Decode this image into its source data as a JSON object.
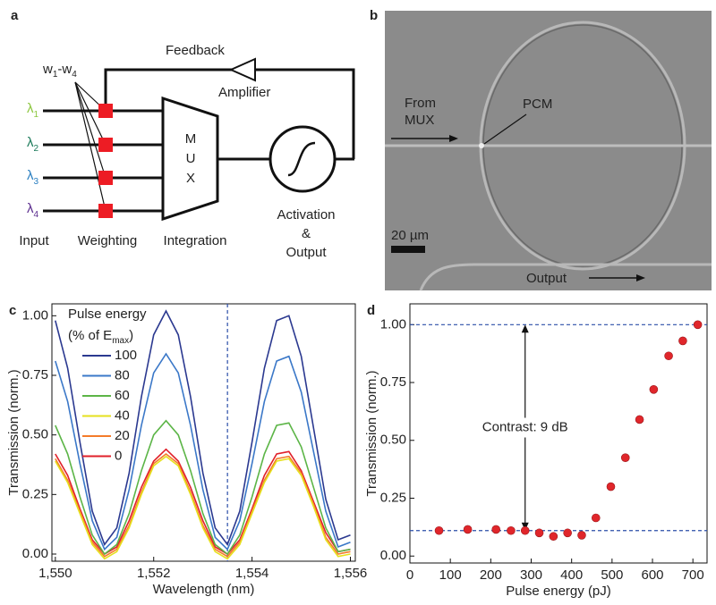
{
  "panel_labels": [
    "a",
    "b",
    "c",
    "d"
  ],
  "diagram": {
    "feedback": "Feedback",
    "amplifier": "Amplifier",
    "weights_label": [
      "w",
      "1",
      "-w",
      "4"
    ],
    "inputs": [
      {
        "symbol": "λ",
        "sub": "1",
        "color": "#8cc63f"
      },
      {
        "symbol": "λ",
        "sub": "2",
        "color": "#1b7a5a"
      },
      {
        "symbol": "λ",
        "sub": "3",
        "color": "#2a7fc1"
      },
      {
        "symbol": "λ",
        "sub": "4",
        "color": "#5b2d8e"
      }
    ],
    "mux": [
      "M",
      "U",
      "X"
    ],
    "activation": [
      "Activation",
      "&",
      "Output"
    ],
    "stage_labels": [
      "Input",
      "Weighting",
      "Integration"
    ]
  },
  "micrograph": {
    "from_label": [
      "From",
      "MUX"
    ],
    "pcm": "PCM",
    "scale_bar": "20 µm",
    "output": "Output"
  },
  "chart_data": [
    {
      "type": "line",
      "x_label": "Wavelength (nm)",
      "y_label": "Transmission (norm.)",
      "legend_title": "Pulse energy",
      "legend_subtitle": [
        "(% of E",
        "max",
        ")"
      ],
      "x": [
        1550,
        1550.25,
        1550.5,
        1550.75,
        1551,
        1551.25,
        1551.5,
        1551.75,
        1552,
        1552.25,
        1552.5,
        1552.75,
        1553,
        1553.25,
        1553.5,
        1553.75,
        1554,
        1554.25,
        1554.5,
        1554.75,
        1555,
        1555.25,
        1555.5,
        1555.75,
        1556
      ],
      "series": [
        {
          "name": "100",
          "color": "#2b3990",
          "values": [
            0.98,
            0.78,
            0.47,
            0.18,
            0.04,
            0.11,
            0.34,
            0.66,
            0.92,
            1.02,
            0.92,
            0.66,
            0.34,
            0.11,
            0.04,
            0.18,
            0.47,
            0.78,
            0.98,
            1.0,
            0.83,
            0.53,
            0.23,
            0.06,
            0.08
          ]
        },
        {
          "name": "80",
          "color": "#3b78c8",
          "values": [
            0.81,
            0.64,
            0.38,
            0.14,
            0.02,
            0.07,
            0.27,
            0.54,
            0.76,
            0.84,
            0.76,
            0.54,
            0.27,
            0.07,
            0.02,
            0.14,
            0.38,
            0.64,
            0.81,
            0.83,
            0.68,
            0.43,
            0.18,
            0.03,
            0.05
          ]
        },
        {
          "name": "60",
          "color": "#5cb547",
          "values": [
            0.54,
            0.42,
            0.24,
            0.08,
            0.0,
            0.04,
            0.17,
            0.35,
            0.5,
            0.56,
            0.5,
            0.35,
            0.17,
            0.04,
            0.0,
            0.08,
            0.24,
            0.42,
            0.54,
            0.55,
            0.45,
            0.28,
            0.11,
            0.01,
            0.02
          ]
        },
        {
          "name": "40",
          "color": "#e6e01e",
          "values": [
            0.39,
            0.3,
            0.17,
            0.04,
            -0.02,
            0.01,
            0.11,
            0.25,
            0.37,
            0.41,
            0.37,
            0.25,
            0.11,
            0.01,
            -0.02,
            0.04,
            0.17,
            0.3,
            0.39,
            0.4,
            0.33,
            0.2,
            0.06,
            -0.01,
            0.0
          ]
        },
        {
          "name": "20",
          "color": "#f47b2a",
          "values": [
            0.4,
            0.31,
            0.18,
            0.05,
            -0.01,
            0.02,
            0.12,
            0.26,
            0.38,
            0.42,
            0.38,
            0.26,
            0.12,
            0.02,
            -0.01,
            0.05,
            0.18,
            0.31,
            0.4,
            0.41,
            0.34,
            0.21,
            0.07,
            0.0,
            0.01
          ]
        },
        {
          "name": "0",
          "color": "#e0202a",
          "values": [
            0.42,
            0.33,
            0.19,
            0.06,
            0.0,
            0.03,
            0.14,
            0.28,
            0.39,
            0.44,
            0.39,
            0.28,
            0.14,
            0.03,
            0.0,
            0.06,
            0.19,
            0.33,
            0.42,
            0.43,
            0.35,
            0.22,
            0.09,
            0.01,
            0.02
          ]
        }
      ],
      "vline": 1553.5,
      "xlim": [
        1549.93,
        1556.1
      ],
      "ylim": [
        -0.03,
        1.05
      ],
      "xticks": [
        {
          "value": 1550,
          "label": "1,550"
        },
        {
          "value": 1552,
          "label": "1,552"
        },
        {
          "value": 1554,
          "label": "1,554"
        },
        {
          "value": 1556,
          "label": "1,556"
        }
      ],
      "yticks": [
        {
          "value": 0,
          "label": "0.00"
        },
        {
          "value": 0.25,
          "label": "0.25"
        },
        {
          "value": 0.5,
          "label": "0.50"
        },
        {
          "value": 0.75,
          "label": "0.75"
        },
        {
          "value": 1,
          "label": "1.00"
        }
      ]
    },
    {
      "type": "scatter",
      "x_label": "Pulse energy (pJ)",
      "y_label": "Transmission (norm.)",
      "annotation": "Contrast: 9 dB",
      "color": "#e0262b",
      "x": [
        72,
        143,
        213,
        250,
        285,
        320,
        355,
        390,
        425,
        460,
        497,
        533,
        568,
        603,
        640,
        675,
        712
      ],
      "values": [
        0.11,
        0.115,
        0.115,
        0.11,
        0.11,
        0.1,
        0.085,
        0.1,
        0.09,
        0.165,
        0.3,
        0.425,
        0.59,
        0.72,
        0.865,
        0.93,
        1.0
      ],
      "hlines": [
        1.0,
        0.11
      ],
      "xlim": [
        0,
        735
      ],
      "ylim": [
        -0.03,
        1.09
      ],
      "xticks": [
        0,
        100,
        200,
        300,
        400,
        500,
        600,
        700
      ],
      "yticks": [
        {
          "value": 0,
          "label": "0.00"
        },
        {
          "value": 0.25,
          "label": "0.25"
        },
        {
          "value": 0.5,
          "label": "0.50"
        },
        {
          "value": 0.75,
          "label": "0.75"
        },
        {
          "value": 1,
          "label": "1.00"
        }
      ]
    }
  ]
}
